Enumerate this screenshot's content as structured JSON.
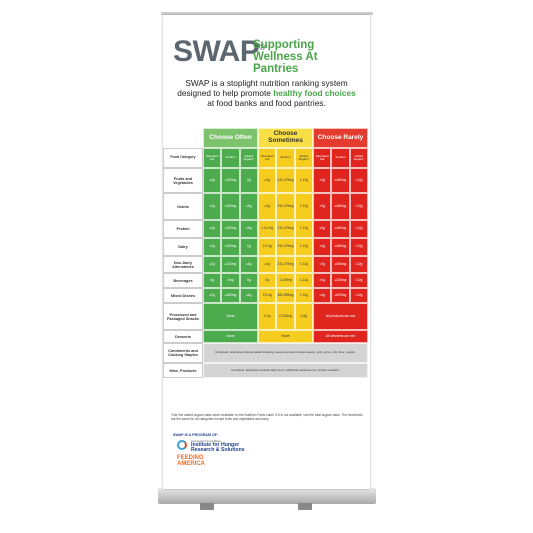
{
  "header": {
    "brand": "SWAP",
    "brand_mark": "®",
    "tagline": "Supporting Wellness At Pantries",
    "intro_before": "SWAP is a stoplight nutrition ranking system designed to help promote ",
    "intro_highlight": "healthy food choices",
    "intro_after": " at food banks and food pantries."
  },
  "table": {
    "groups": [
      "Choose Often",
      "Choose Sometimes",
      "Choose Rarely"
    ],
    "columns": [
      "Food Category",
      "Saturated Fat",
      "Sodium",
      "Added Sugars*",
      "Saturated Fat",
      "Sodium",
      "Added Sugars*",
      "Saturated Fat",
      "Sodium",
      "Added Sugars*"
    ],
    "rows": [
      {
        "category": "Fruits and Vegetables",
        "groups": [
          [
            "≤2g",
            "≤230mg",
            "0g"
          ],
          [
            "≤2g",
            "231-479mg",
            "1-12g"
          ],
          [
            ">2g",
            "≥480mg",
            ">12g"
          ]
        ]
      },
      {
        "category": "Grains",
        "groups": [
          [
            "≤2g",
            "≤230mg",
            "≤6g"
          ],
          [
            "≤2g",
            "231-479mg",
            "7-12g"
          ],
          [
            ">2g",
            "≥480mg",
            ">12g"
          ]
        ]
      },
      {
        "category": "Protein",
        "groups": [
          [
            "≤2g",
            "≤230mg",
            "≤6g"
          ],
          [
            "2.5-4.5g",
            "231-479mg",
            "7-12g"
          ],
          [
            "≥5g",
            "≥480mg",
            ">12g"
          ]
        ]
      },
      {
        "category": "Dairy",
        "groups": [
          [
            "≤2g",
            "≤230mg",
            "0g"
          ],
          [
            "2.5-4g",
            "231-479mg",
            "1-12g"
          ],
          [
            ">4g",
            "≥480mg",
            ">12g"
          ]
        ]
      },
      {
        "category": "Non-Dairy Alternatives",
        "groups": [
          [
            "≤2g",
            "≤230mg",
            "≤6g"
          ],
          [
            "≤2g",
            "231-479mg",
            "7-12g"
          ],
          [
            ">2g",
            "≥480mg",
            ">12g"
          ]
        ]
      },
      {
        "category": "Beverages",
        "groups": [
          [
            "0g",
            "0mg",
            "0g"
          ],
          [
            "0g",
            "1-149mg",
            "1-12g"
          ],
          [
            ">0g",
            "≥150mg",
            ">12g"
          ]
        ]
      },
      {
        "category": "Mixed Dishes",
        "groups": [
          [
            "≤2g",
            "≤480mg",
            "≤6g"
          ],
          [
            "2.5-4g",
            "481-599mg",
            "7-12g"
          ],
          [
            ">4g",
            "≥600mg",
            ">12g"
          ]
        ]
      },
      {
        "category": "Processed and Packaged Snacks",
        "groups": [
          "None",
          [
            "0-2g",
            "0-230mg",
            "0-6g"
          ],
          "All products are red"
        ]
      },
      {
        "category": "Desserts",
        "groups": [
          "None",
          "None",
          "All desserts are red"
        ]
      },
      {
        "category": "Condiments and Cooking Staples",
        "note": "Unranked. Examples include salad dressing, sauces (except tomato sauce), jelly, syrup, oils, flour, sugars."
      },
      {
        "category": "Misc. Products",
        "note": "Unranked. Examples include baby food, nutritional supplements, protein powders."
      }
    ]
  },
  "footnote": "*Use the added sugars value when available on the Nutrition Facts Label. If it is not available, use the total sugars value. The thresholds are the same for all categories except fruits and vegetables and dairy.",
  "program": {
    "label": "SWAP IS A PROGRAM OF:",
    "partner_small": "Connecticut Food Share",
    "partner": "Institute for Hunger Research & Solutions",
    "partner2_top": "FEEDING",
    "partner2_bottom": "AMERICA"
  }
}
